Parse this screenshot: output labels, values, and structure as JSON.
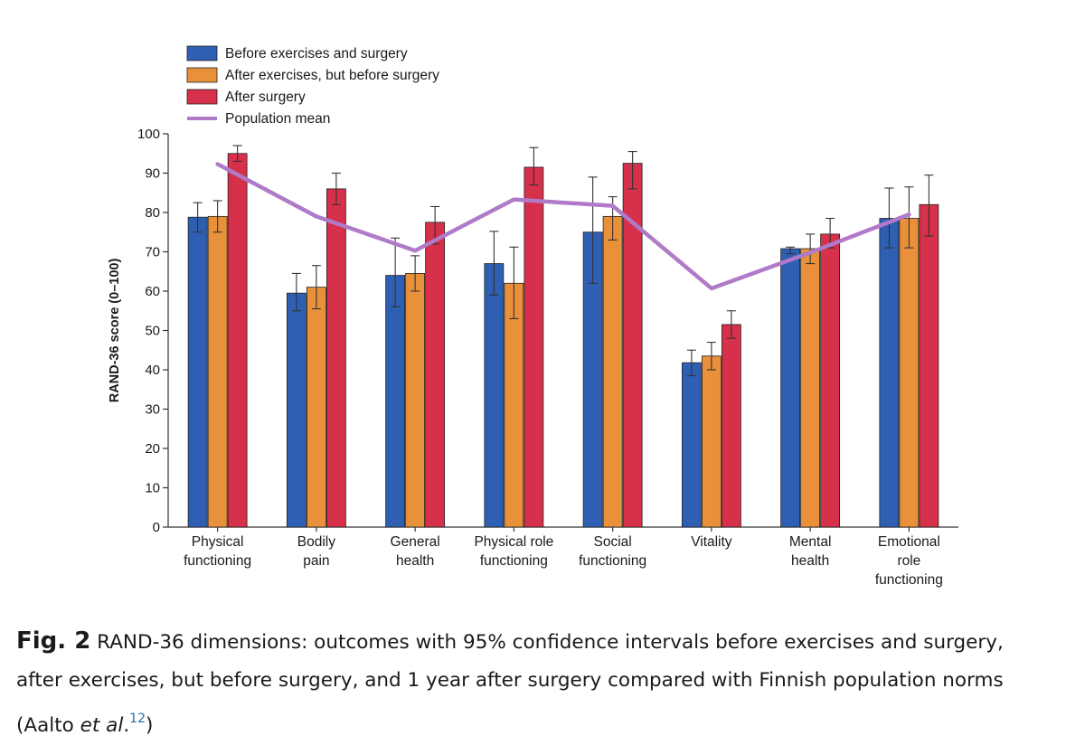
{
  "chart_data": {
    "type": "bar",
    "ylabel": "RAND-36 score (0–100)",
    "ylim": [
      0,
      100
    ],
    "yticks": [
      0,
      10,
      20,
      30,
      40,
      50,
      60,
      70,
      80,
      90,
      100
    ],
    "categories": [
      [
        "Physical",
        "functioning"
      ],
      [
        "Bodily",
        "pain"
      ],
      [
        "General",
        "health"
      ],
      [
        "Physical role",
        "functioning"
      ],
      [
        "Social",
        "functioning"
      ],
      [
        "Vitality"
      ],
      [
        "Mental",
        "health"
      ],
      [
        "Emotional",
        "role",
        "functioning"
      ]
    ],
    "series": [
      {
        "name": "Before exercises and surgery",
        "color": "#2f5fb3",
        "values": [
          78.8,
          59.5,
          64,
          67,
          75,
          41.8,
          70.8,
          78.5
        ],
        "ci_low": [
          75,
          55,
          56,
          59,
          62,
          38.5,
          69.5,
          71
        ],
        "ci_high": [
          82.5,
          64.5,
          73.5,
          75.2,
          89,
          45,
          71.2,
          86.2
        ]
      },
      {
        "name": "After exercises, but before surgery",
        "color": "#e8903a",
        "values": [
          79,
          61,
          64.5,
          62,
          79,
          43.5,
          70.8,
          78.5
        ],
        "ci_low": [
          75,
          55.5,
          60,
          53,
          73,
          40,
          67,
          71
        ],
        "ci_high": [
          83,
          66.5,
          69,
          71.2,
          84,
          47,
          74.5,
          86.5
        ]
      },
      {
        "name": "After surgery",
        "color": "#d6304a",
        "values": [
          95,
          86,
          77.5,
          91.5,
          92.5,
          51.5,
          74.5,
          82
        ],
        "ci_low": [
          93,
          82,
          72,
          87,
          86,
          48,
          71,
          74
        ],
        "ci_high": [
          97,
          90,
          81.5,
          96.5,
          95.5,
          55,
          78.5,
          89.5
        ]
      }
    ],
    "population_mean": {
      "name": "Population mean",
      "color": "#b07ac8",
      "values": [
        92.3,
        79,
        70.3,
        83.3,
        81.7,
        60.7,
        69.8,
        79.5
      ]
    },
    "legend_position": "top-left"
  },
  "caption": {
    "label": "Fig. 2",
    "line1": "RAND-36 dimensions: outcomes with 95% confidence intervals before exercises and surgery,",
    "line2": "after exercises, but before surgery, and 1 year after surgery compared with Finnish population norms",
    "line3_pre": "(Aalto ",
    "line3_ital": "et al",
    "line3_dot": ".",
    "ref": "12",
    "line3_post": ")"
  }
}
